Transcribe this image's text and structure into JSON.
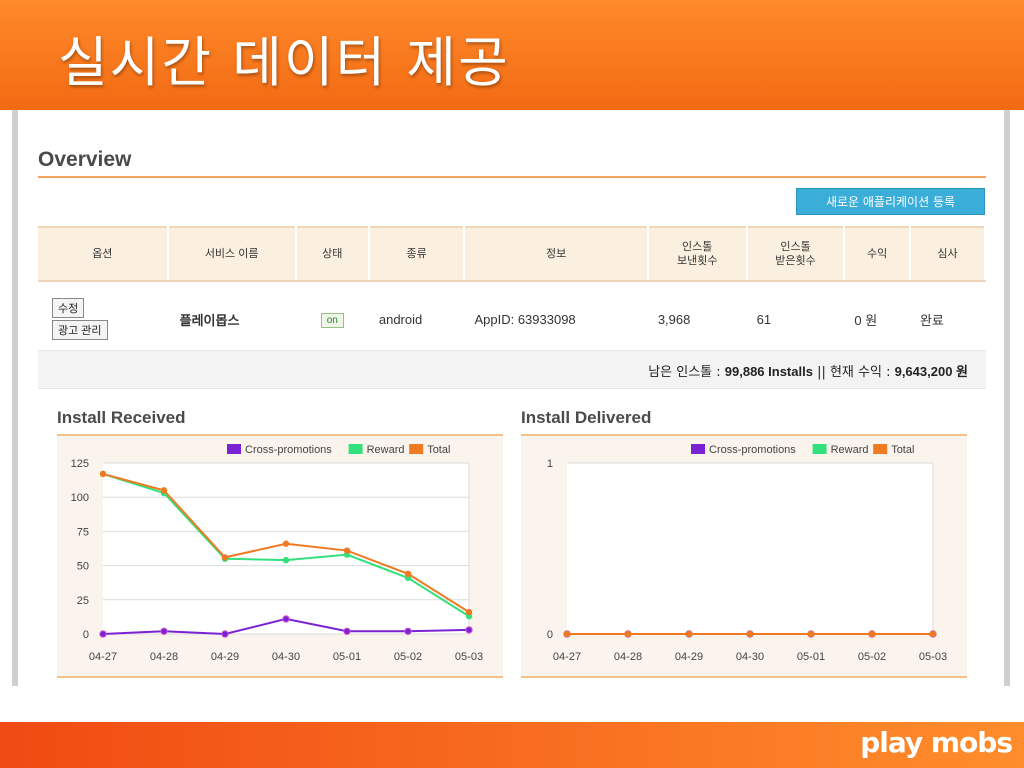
{
  "slide": {
    "title": "실시간 데이터 제공",
    "logo": "play mobs"
  },
  "overview": {
    "title": "Overview",
    "register_button": "새로운 애플리케이션 등록",
    "columns": [
      "옵션",
      "서비스 이름",
      "상태",
      "종류",
      "정보",
      "인스톨\n보낸횟수",
      "인스톨\n받은횟수",
      "수익",
      "심사"
    ],
    "row": {
      "edit_button": "수정",
      "ad_manage_button": "광고 관리",
      "service_name": "플레이몹스",
      "status": "on",
      "type": "android",
      "info": "AppID: 63933098",
      "installs_sent": "3,968",
      "installs_received": "61",
      "revenue": "0 원",
      "review": "완료"
    },
    "summary": {
      "remaining_label": "남은 인스톨 : ",
      "remaining_value": "99,886 Installs",
      "separator": " || ",
      "revenue_label": "현재 수익 : ",
      "revenue_value": "9,643,200 원"
    }
  },
  "colors": {
    "cross": "#7b22d4",
    "reward": "#33e07e",
    "total": "#f07a22",
    "accent": "#f26a13"
  },
  "chart_data": [
    {
      "type": "line",
      "title": "Install Received",
      "x": [
        "04-27",
        "04-28",
        "04-29",
        "04-30",
        "05-01",
        "05-02",
        "05-03"
      ],
      "ylim": [
        0,
        125
      ],
      "yticks": [
        0,
        25,
        50,
        75,
        100,
        125
      ],
      "legend_position": "top-right",
      "series": [
        {
          "name": "Cross-promotions",
          "values": [
            0,
            2,
            0,
            11,
            2,
            2,
            3
          ]
        },
        {
          "name": "Reward",
          "values": [
            117,
            103,
            55,
            54,
            58,
            41,
            13
          ]
        },
        {
          "name": "Total",
          "values": [
            117,
            105,
            56,
            66,
            61,
            44,
            16
          ]
        }
      ]
    },
    {
      "type": "line",
      "title": "Install Delivered",
      "x": [
        "04-27",
        "04-28",
        "04-29",
        "04-30",
        "05-01",
        "05-02",
        "05-03"
      ],
      "ylim": [
        0,
        1
      ],
      "yticks": [
        0,
        1
      ],
      "legend_position": "top-right",
      "series": [
        {
          "name": "Cross-promotions",
          "values": [
            0,
            0,
            0,
            0,
            0,
            0,
            0
          ]
        },
        {
          "name": "Reward",
          "values": [
            0,
            0,
            0,
            0,
            0,
            0,
            0
          ]
        },
        {
          "name": "Total",
          "values": [
            0,
            0,
            0,
            0,
            0,
            0,
            0
          ]
        }
      ]
    }
  ]
}
